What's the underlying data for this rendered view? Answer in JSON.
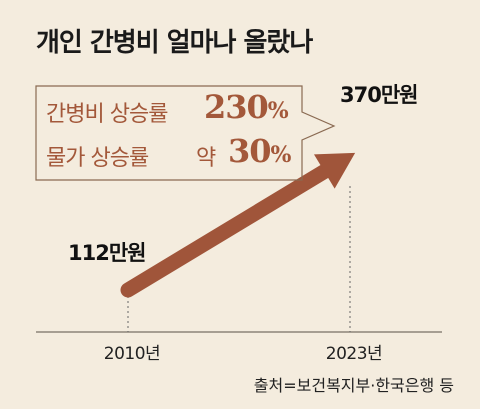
{
  "title": "개인 간병비 얼마나 올랐나",
  "callout": {
    "row1_label": "간병비 상승률",
    "row1_value": "230",
    "row1_unit": "%",
    "row2_label": "물가 상승률",
    "row2_prefix": "약",
    "row2_value": "30",
    "row2_unit": "%"
  },
  "source": "출처=보건복지부·한국은행 등",
  "colors": {
    "background": "#f4ecde",
    "arrow": "#a0553a",
    "accent_text": "#a3583a",
    "box_border": "#8a6a52"
  },
  "chart_data": {
    "type": "line",
    "title": "개인 간병비 얼마나 올랐나",
    "x": [
      "2010년",
      "2023년"
    ],
    "series": [
      {
        "values": [
          112,
          370
        ]
      }
    ],
    "data_labels": [
      "112만원",
      "370만원"
    ],
    "unit": "만원",
    "grid": false,
    "style": "arrow"
  }
}
